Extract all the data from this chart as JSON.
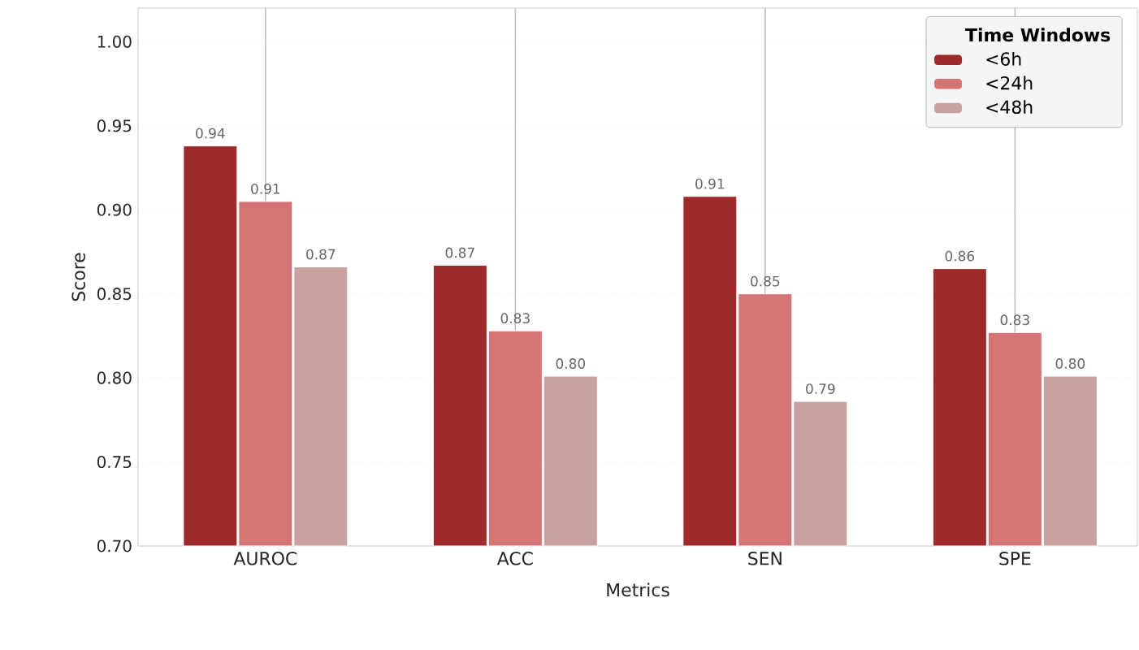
{
  "chart_data": {
    "type": "bar",
    "xlabel": "Metrics",
    "ylabel": "Score",
    "legend_title": "Time Windows",
    "categories": [
      "AUROC",
      "ACC",
      "SEN",
      "SPE"
    ],
    "series": [
      {
        "name": "<6h",
        "color": "#9e2a2b",
        "values": [
          0.938,
          0.867,
          0.908,
          0.865
        ],
        "value_labels": [
          "0.94",
          "0.87",
          "0.91",
          "0.86"
        ]
      },
      {
        "name": "<24h",
        "color": "#d47474",
        "values": [
          0.905,
          0.828,
          0.85,
          0.827
        ],
        "value_labels": [
          "0.91",
          "0.83",
          "0.85",
          "0.83"
        ]
      },
      {
        "name": "<48h",
        "color": "#c9a1a1",
        "values": [
          0.866,
          0.801,
          0.786,
          0.801
        ],
        "value_labels": [
          "0.87",
          "0.80",
          "0.79",
          "0.80"
        ]
      }
    ],
    "ylim": [
      0.7,
      1.02
    ],
    "yticks": [
      {
        "value": 0.7,
        "label": "0.70"
      },
      {
        "value": 0.75,
        "label": "0.75"
      },
      {
        "value": 0.8,
        "label": "0.80"
      },
      {
        "value": 0.85,
        "label": "0.85"
      },
      {
        "value": 0.9,
        "label": "0.90"
      },
      {
        "value": 0.95,
        "label": "0.95"
      },
      {
        "value": 1.0,
        "label": "1.00"
      }
    ],
    "grid": true,
    "legend": "top right"
  }
}
